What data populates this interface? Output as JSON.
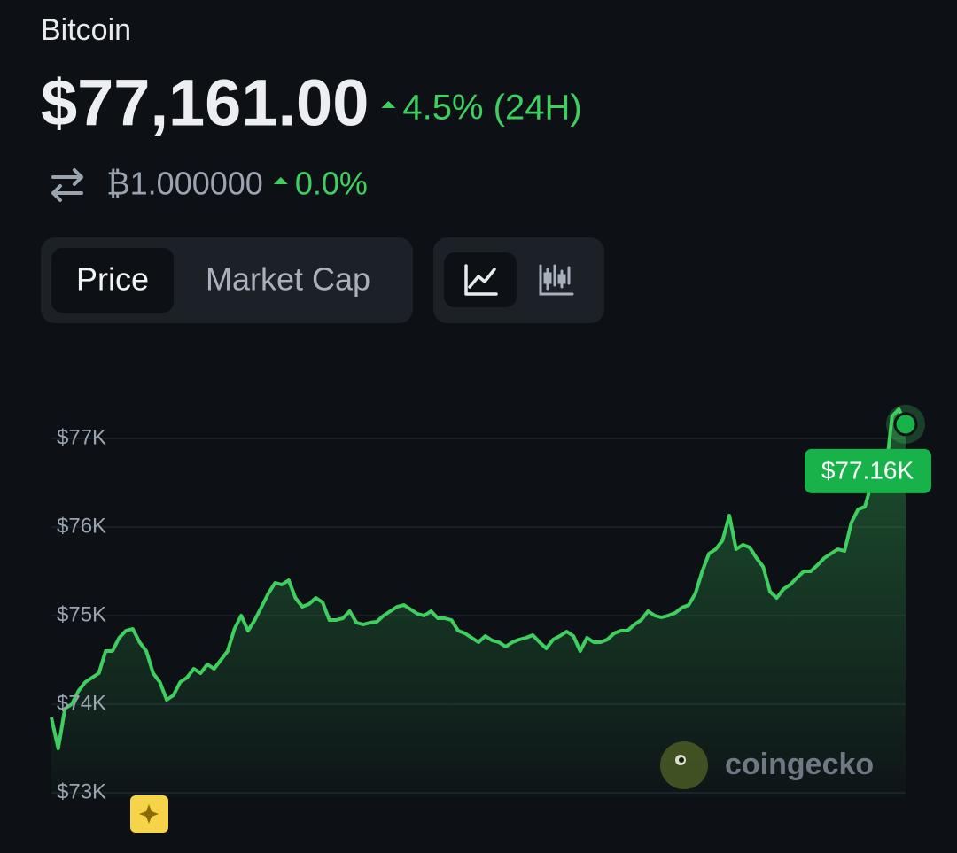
{
  "header": {
    "name": "Bitcoin",
    "price": "$77,161.00",
    "change": "4.5% (24H)",
    "btc_price": "₿1.000000",
    "btc_change": "0.0%"
  },
  "tabs": [
    "Price",
    "Market Cap"
  ],
  "chart_data": {
    "type": "line",
    "series": [
      {
        "color": "#3ecf5e",
        "values": [
          73850,
          73500,
          73950,
          74000,
          74150,
          74250,
          74300,
          74350,
          74600,
          74600,
          74750,
          74830,
          74850,
          74700,
          74600,
          74350,
          74250,
          74050,
          74100,
          74250,
          74300,
          74400,
          74350,
          74450,
          74400,
          74500,
          74600,
          74850,
          75000,
          74830,
          74950,
          75100,
          75250,
          75370,
          75350,
          75400,
          75200,
          75100,
          75130,
          75200,
          75150,
          74950,
          74950,
          74970,
          75050,
          74920,
          74900,
          74920,
          74930,
          75000,
          75050,
          75100,
          75120,
          75070,
          75020,
          75000,
          75050,
          74970,
          74970,
          74950,
          74830,
          74800,
          74750,
          74700,
          74770,
          74720,
          74700,
          74650,
          74700,
          74730,
          74750,
          74780,
          74700,
          74630,
          74730,
          74770,
          74820,
          74770,
          74600,
          74750,
          74700,
          74700,
          74730,
          74800,
          74830,
          74830,
          74900,
          74950,
          75050,
          75000,
          74980,
          75000,
          75030,
          75090,
          75120,
          75250,
          75500,
          75700,
          75750,
          75850,
          76130,
          75750,
          75800,
          75770,
          75650,
          75550,
          75270,
          75200,
          75300,
          75350,
          75430,
          75500,
          75500,
          75570,
          75650,
          75700,
          75750,
          75730,
          76050,
          76200,
          76230,
          76500,
          76550,
          76550,
          77250,
          77330,
          77161
        ]
      }
    ],
    "ylim": [
      72950,
      77400
    ],
    "yticks": [
      {
        "value": 73000,
        "label": "$73K"
      },
      {
        "value": 74000,
        "label": "$74K"
      },
      {
        "value": 75000,
        "label": "$75K"
      },
      {
        "value": 76000,
        "label": "$76K"
      },
      {
        "value": 77000,
        "label": "$77K"
      }
    ],
    "grid": true,
    "last_price": {
      "value": 77161,
      "label": "$77.16K",
      "color": "#17b34a"
    },
    "watermark": "coingecko"
  }
}
